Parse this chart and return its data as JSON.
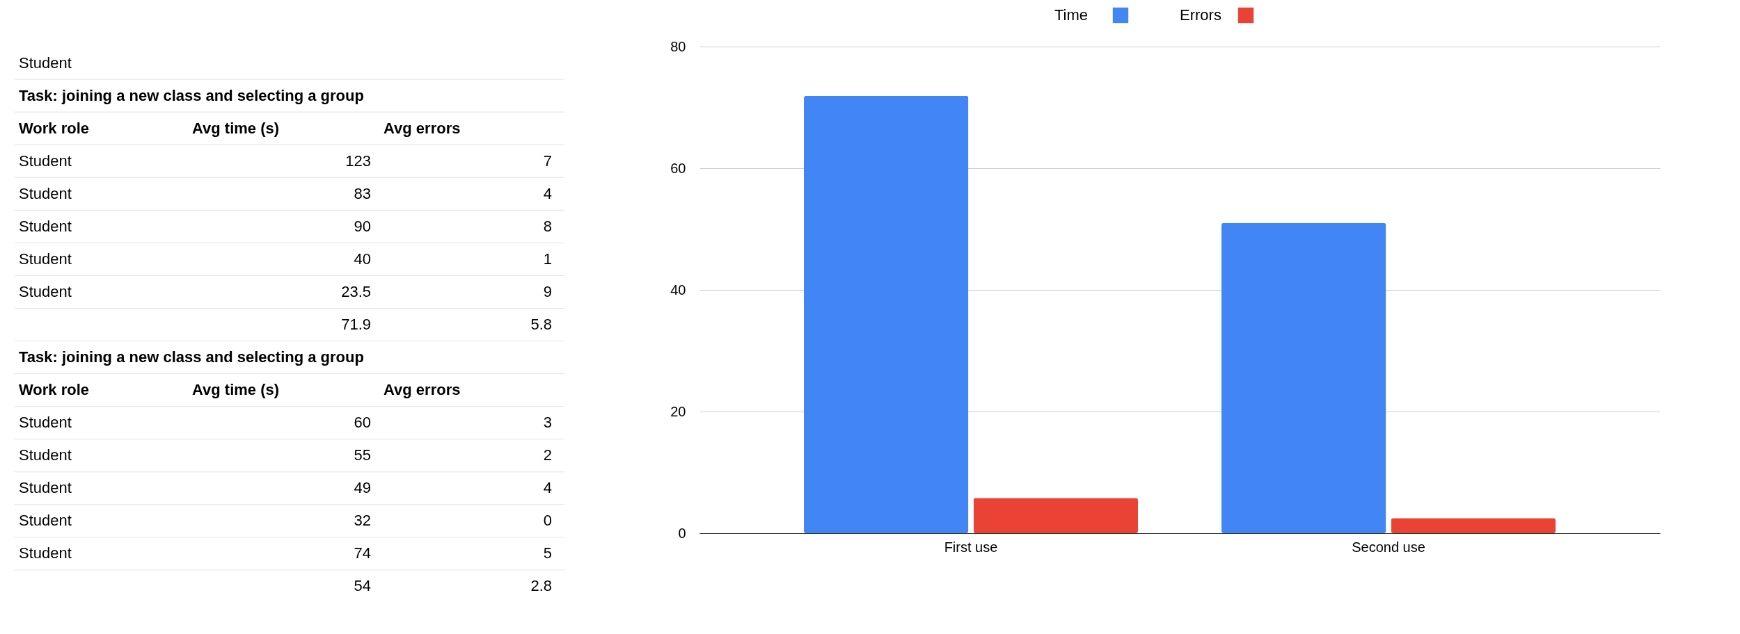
{
  "chart_data": [
    {
      "type": "other",
      "annotations": [
        "Student",
        "Task: joining a new class and selecting a group",
        "Work role",
        "Avg time (s)",
        "Avg errors",
        "Student",
        "123",
        "7",
        "Student",
        "83",
        "4",
        "Student",
        "90",
        "8",
        "Student",
        "40",
        "1",
        "Student",
        "23.5",
        "9",
        "71.9",
        "5.8",
        "Task: joining a new class and selecting a group",
        "Work role",
        "Avg time (s)",
        "Avg errors",
        "Student",
        "60",
        "3",
        "Student",
        "55",
        "2",
        "Student",
        "49",
        "4",
        "Student",
        "32",
        "0",
        "Student",
        "74",
        "5",
        "54",
        "2.8"
      ]
    },
    {
      "type": "bar",
      "categories": [
        "First use",
        "Second use"
      ],
      "series": [
        {
          "name": "Time",
          "color": "#4285f4",
          "values": [
            71.9,
            51
          ]
        },
        {
          "name": "Errors",
          "color": "#ea4335",
          "values": [
            5.8,
            2.5
          ]
        }
      ],
      "ylim": [
        0,
        80
      ],
      "yticks": [
        0,
        20,
        40,
        60,
        80
      ],
      "grid": "y",
      "legend": "top"
    }
  ]
}
